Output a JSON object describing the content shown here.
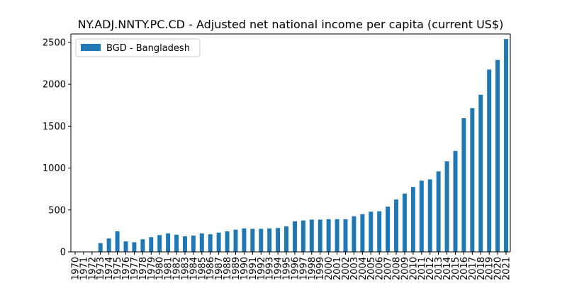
{
  "chart_data": {
    "type": "bar",
    "title": "NY.ADJ.NNTY.PC.CD - Adjusted net national income per capita (current US$)",
    "xlabel": "",
    "ylabel": "",
    "ylim": [
      0,
      2600
    ],
    "y_ticks": [
      0,
      500,
      1000,
      1500,
      2000,
      2500
    ],
    "legend_position": "upper-left",
    "grid": false,
    "categories": [
      "1970",
      "1971",
      "1972",
      "1973",
      "1974",
      "1975",
      "1976",
      "1977",
      "1978",
      "1979",
      "1980",
      "1981",
      "1982",
      "1983",
      "1984",
      "1985",
      "1986",
      "1987",
      "1988",
      "1989",
      "1990",
      "1991",
      "1992",
      "1993",
      "1994",
      "1995",
      "1996",
      "1997",
      "1998",
      "1999",
      "2000",
      "2001",
      "2002",
      "2003",
      "2004",
      "2005",
      "2006",
      "2007",
      "2008",
      "2009",
      "2010",
      "2011",
      "2012",
      "2013",
      "2014",
      "2015",
      "2016",
      "2017",
      "2018",
      "2019",
      "2020",
      "2021"
    ],
    "series": [
      {
        "name": "BGD - Bangladesh",
        "color": "#1f77b4",
        "values": [
          0,
          0,
          0,
          105,
          160,
          245,
          125,
          115,
          150,
          175,
          200,
          220,
          205,
          185,
          195,
          220,
          210,
          230,
          245,
          265,
          280,
          275,
          275,
          280,
          285,
          305,
          365,
          375,
          385,
          385,
          390,
          390,
          390,
          425,
          450,
          480,
          485,
          540,
          625,
          695,
          775,
          850,
          865,
          960,
          1080,
          1205,
          1595,
          1715,
          1875,
          2175,
          2290,
          2540
        ]
      }
    ]
  }
}
